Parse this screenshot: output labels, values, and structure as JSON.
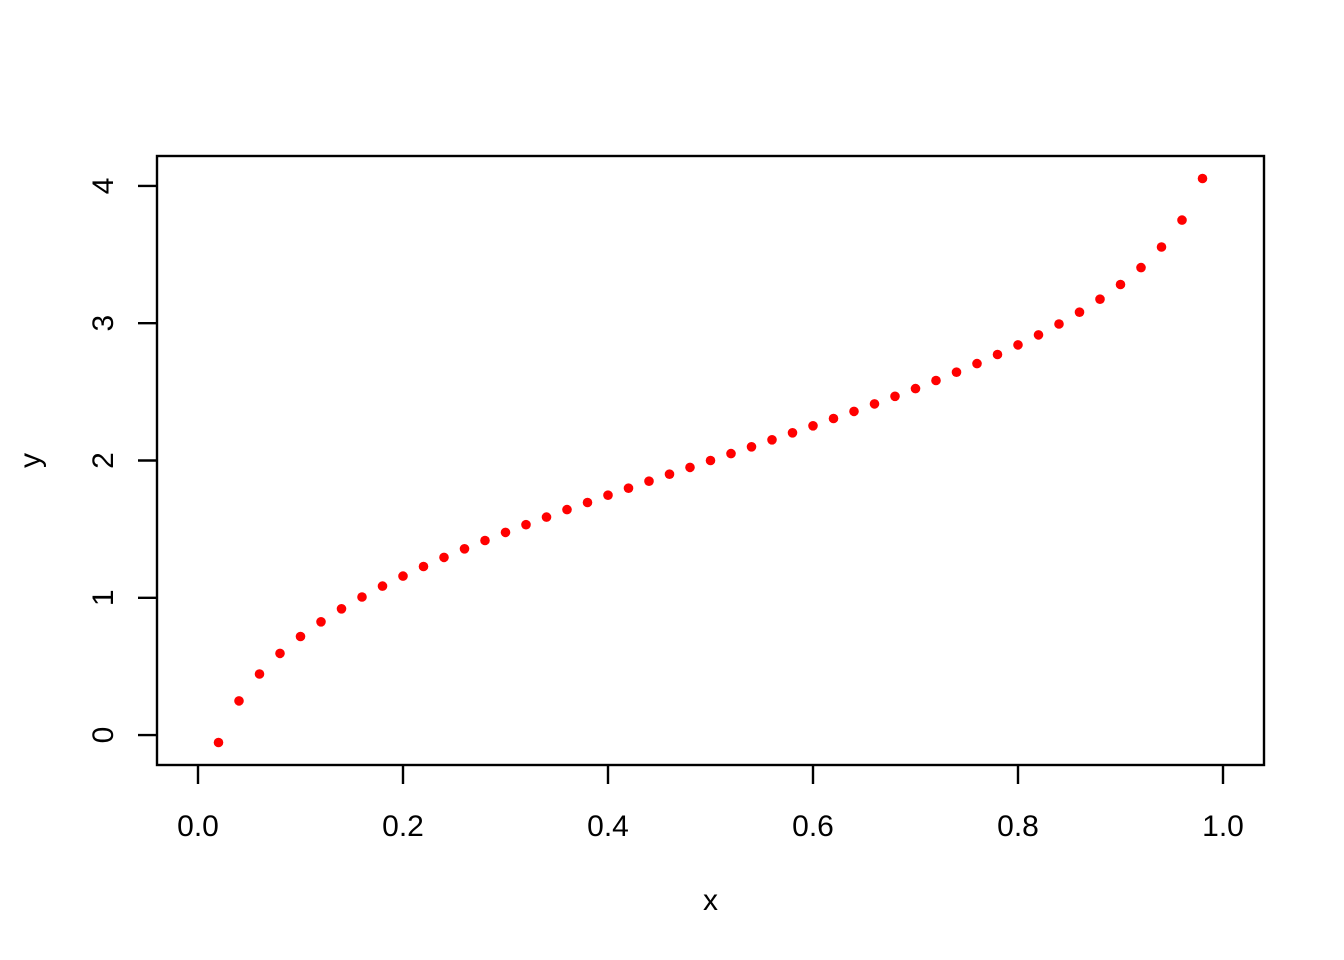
{
  "chart_data": {
    "type": "scatter",
    "title": "",
    "xlabel": "x",
    "ylabel": "y",
    "x_tick_labels": [
      "0.0",
      "0.2",
      "0.4",
      "0.6",
      "0.8",
      "1.0"
    ],
    "x_tick_values": [
      0.0,
      0.2,
      0.4,
      0.6,
      0.8,
      1.0
    ],
    "y_tick_labels": [
      "0",
      "1",
      "2",
      "3",
      "4"
    ],
    "y_tick_values": [
      0,
      1,
      2,
      3,
      4
    ],
    "xlim": [
      -0.04,
      1.04
    ],
    "ylim": [
      -0.218,
      4.218
    ],
    "grid": false,
    "legend": "none",
    "point_color": "#FF0000",
    "point_radius_px": 4.8,
    "axis_color": "#000000",
    "background_color": "#FFFFFF",
    "series": [
      {
        "x": [
          0.02,
          0.04,
          0.06,
          0.08,
          0.1,
          0.12,
          0.14,
          0.16,
          0.18,
          0.2,
          0.22,
          0.24,
          0.26,
          0.28,
          0.3,
          0.32,
          0.34,
          0.36,
          0.38,
          0.4,
          0.42,
          0.44,
          0.46,
          0.48,
          0.5,
          0.52,
          0.54,
          0.56,
          0.58,
          0.6,
          0.62,
          0.64,
          0.66,
          0.68,
          0.7,
          0.72,
          0.74,
          0.76,
          0.78,
          0.8,
          0.82,
          0.84,
          0.86,
          0.88,
          0.9,
          0.92,
          0.94,
          0.96,
          0.98
        ],
        "y": [
          -0.054,
          0.249,
          0.445,
          0.595,
          0.718,
          0.825,
          0.92,
          1.006,
          1.085,
          1.158,
          1.228,
          1.294,
          1.357,
          1.417,
          1.476,
          1.532,
          1.588,
          1.642,
          1.694,
          1.747,
          1.798,
          1.849,
          1.9,
          1.95,
          2.0,
          2.05,
          2.1,
          2.151,
          2.202,
          2.253,
          2.306,
          2.358,
          2.412,
          2.468,
          2.524,
          2.583,
          2.643,
          2.706,
          2.772,
          2.842,
          2.915,
          2.994,
          3.08,
          3.175,
          3.282,
          3.405,
          3.555,
          3.751,
          4.054
        ]
      }
    ]
  }
}
